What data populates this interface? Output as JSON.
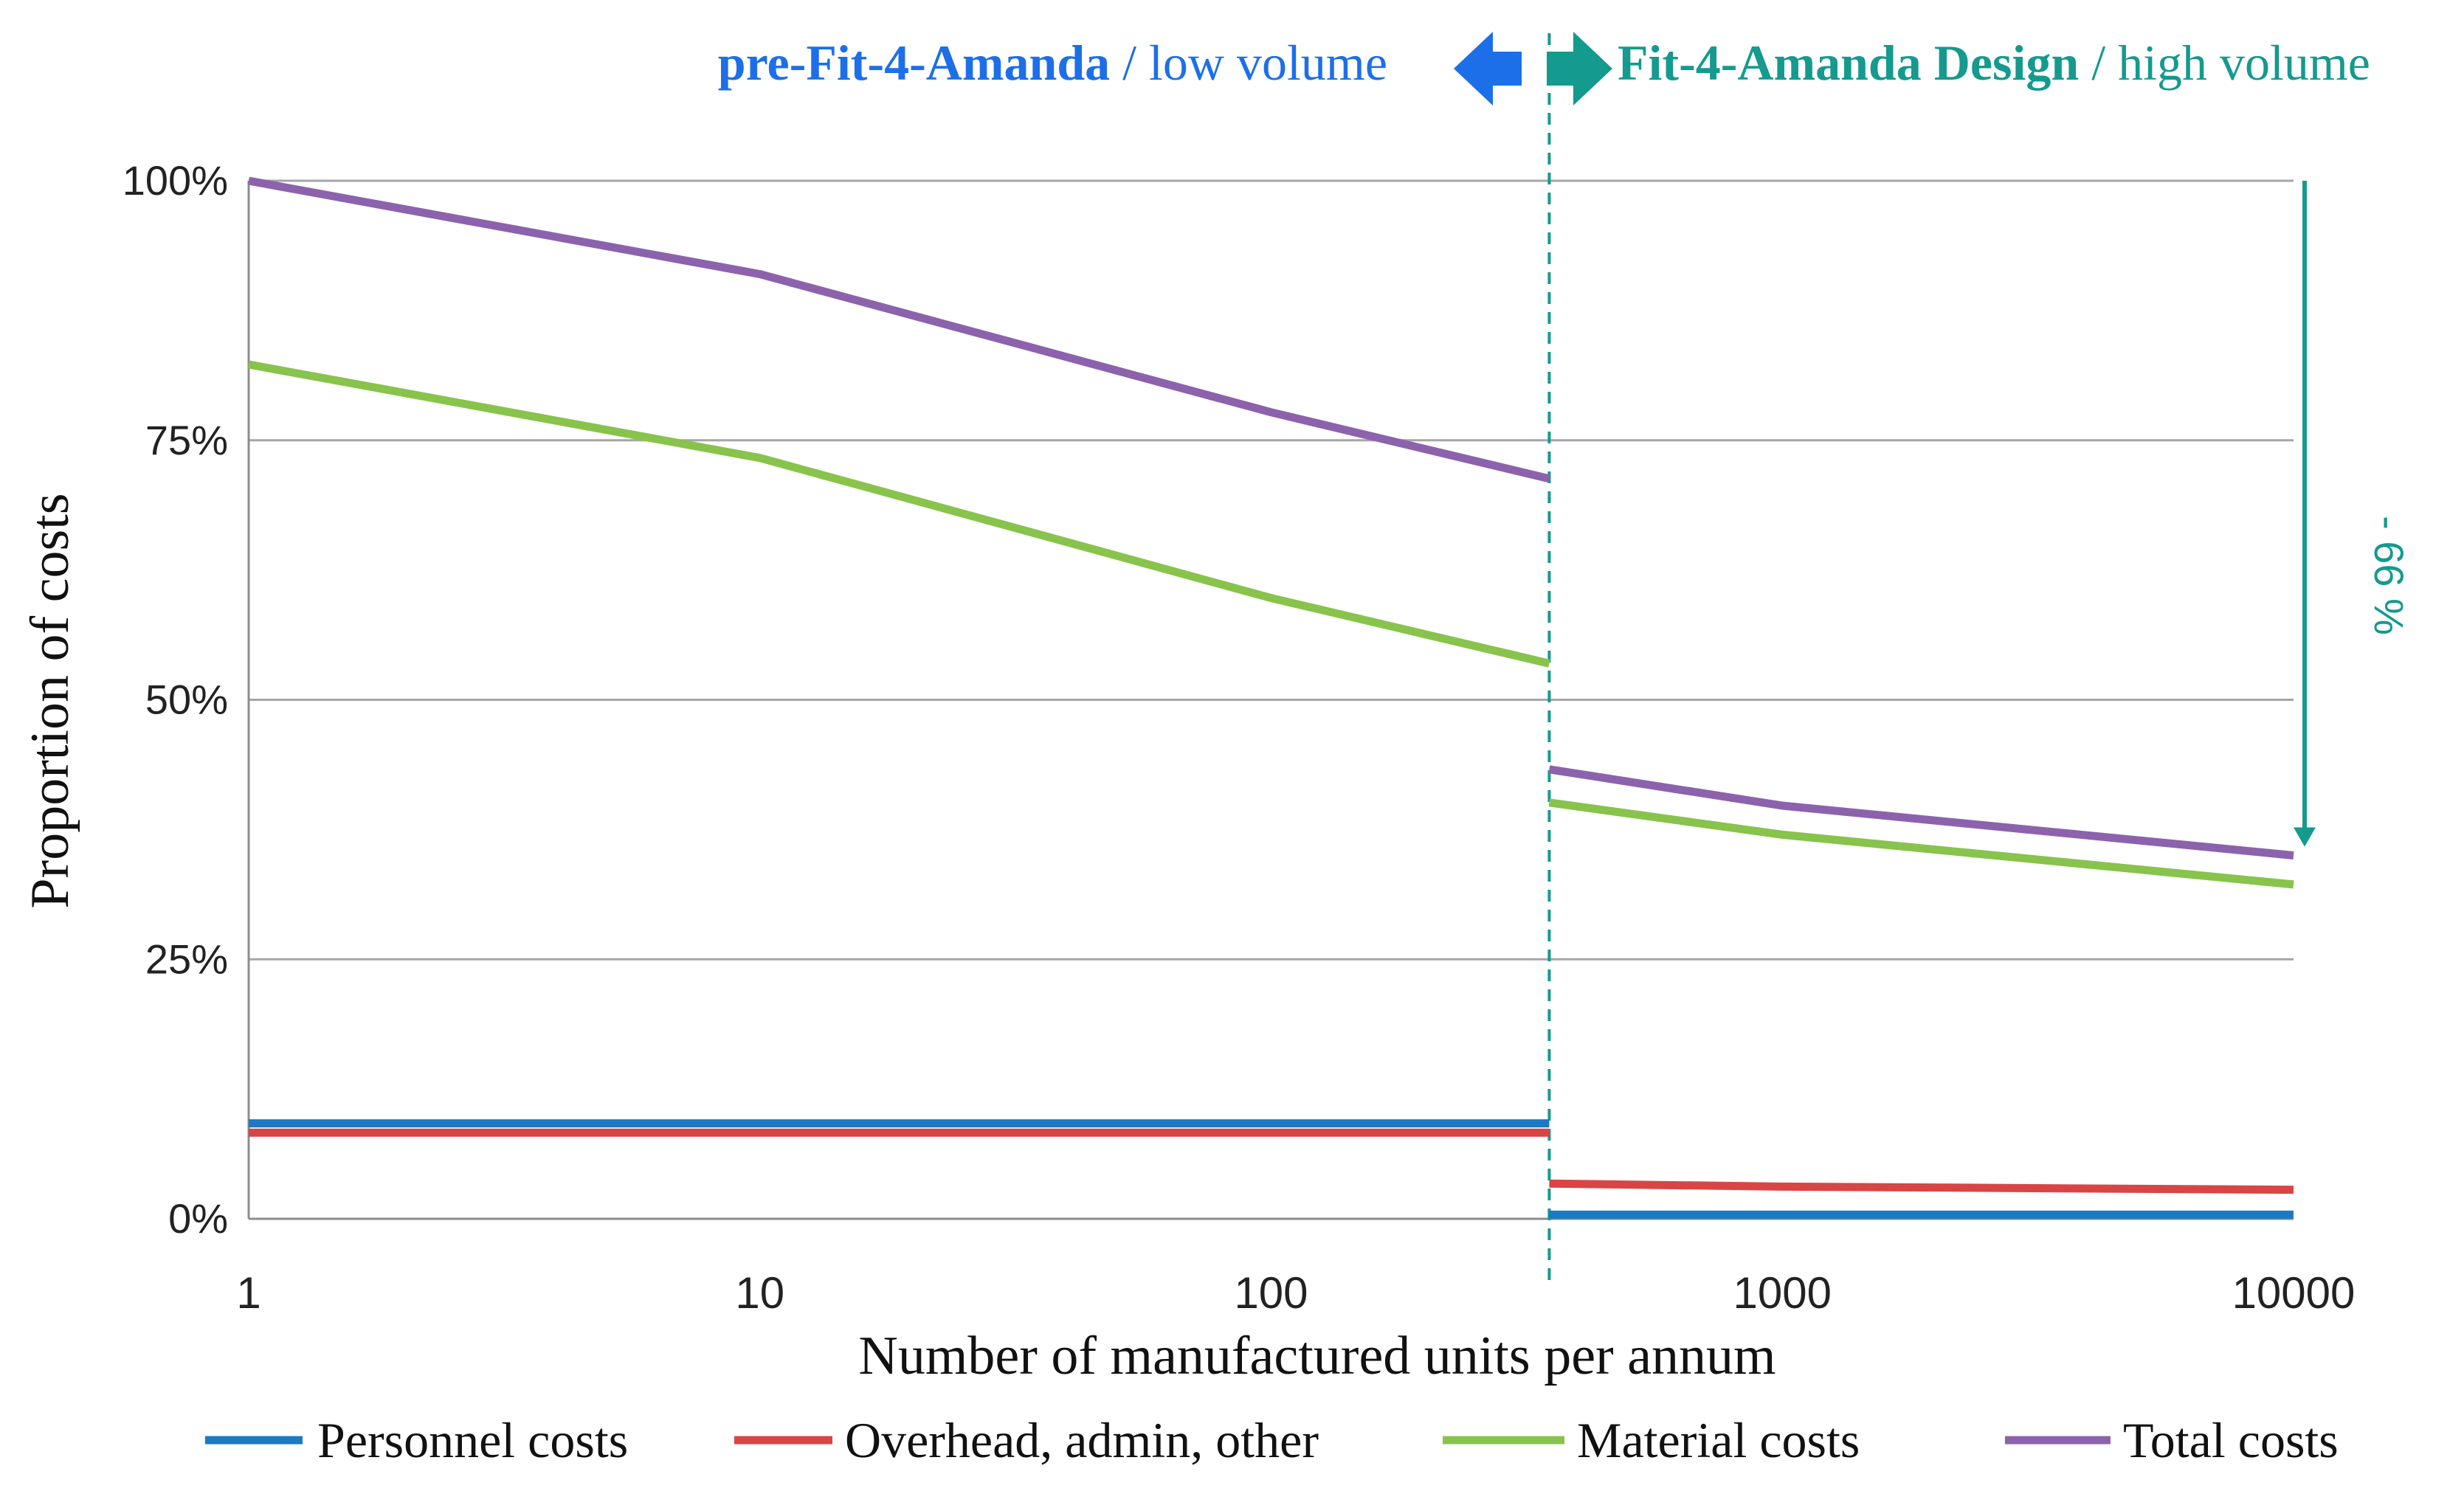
{
  "colors": {
    "personnel": "#1a7ac4",
    "overhead": "#d94545",
    "material": "#88c34c",
    "total": "#8c62ad",
    "pre_header": "#1c6fe8",
    "post_header": "#149a8e",
    "gridline": "#a6a6a6",
    "axis": "#8c8c8c"
  },
  "chart_data": {
    "type": "line",
    "x_scale": "log",
    "xlim": [
      1,
      10000
    ],
    "ylim": [
      0,
      100
    ],
    "y_ticks": [
      0,
      25,
      50,
      75,
      100
    ],
    "y_tick_labels": [
      "0%",
      "25%",
      "50%",
      "75%",
      "100%"
    ],
    "x_ticks": [
      1,
      10,
      100,
      1000,
      10000
    ],
    "x_tick_labels": [
      "1",
      "10",
      "100",
      "1000",
      "10000"
    ],
    "xlabel": "Number of manufactured units per annum",
    "ylabel": "Proportion of costs",
    "split_x": 350,
    "header_left_bold": "pre-Fit-4-Amanda",
    "header_left_rest": " / low volume",
    "header_right_bold": "Fit-4-Amanda Design",
    "header_right_rest": " / high volume",
    "annotation": "- 66 %",
    "series": [
      {
        "name": "Personnel costs",
        "color_key": "personnel",
        "segments": [
          {
            "x": [
              1,
              350
            ],
            "y": [
              9.2,
              9.2
            ]
          },
          {
            "x": [
              350,
              10000
            ],
            "y": [
              0.4,
              0.4
            ]
          }
        ]
      },
      {
        "name": "Overhead, admin, other",
        "color_key": "overhead",
        "segments": [
          {
            "x": [
              1,
              350
            ],
            "y": [
              8.3,
              8.3
            ]
          },
          {
            "x": [
              350,
              1000,
              10000
            ],
            "y": [
              3.4,
              3.1,
              2.8
            ]
          }
        ]
      },
      {
        "name": "Material costs",
        "color_key": "material",
        "segments": [
          {
            "x": [
              1,
              10,
              100,
              350
            ],
            "y": [
              82.3,
              73.3,
              59.8,
              53.5
            ]
          },
          {
            "x": [
              350,
              1000,
              10000
            ],
            "y": [
              40.1,
              37.0,
              32.2
            ]
          }
        ]
      },
      {
        "name": "Total costs",
        "color_key": "total",
        "segments": [
          {
            "x": [
              1,
              10,
              100,
              350
            ],
            "y": [
              100,
              91.0,
              77.7,
              71.3
            ]
          },
          {
            "x": [
              350,
              1000,
              10000
            ],
            "y": [
              43.3,
              39.8,
              35.0
            ]
          }
        ]
      }
    ],
    "legend_position": "bottom"
  }
}
